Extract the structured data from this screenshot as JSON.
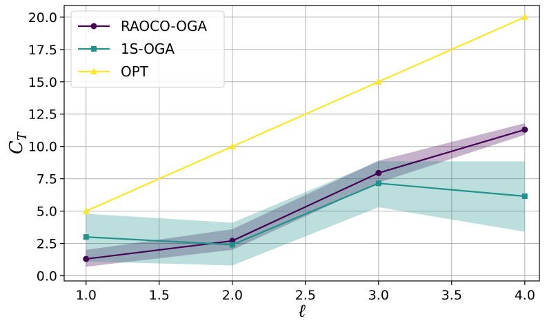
{
  "chart_data": {
    "type": "line",
    "title": "",
    "xlabel": "ℓ",
    "ylabel": "C_T",
    "ylabel_main": "C",
    "ylabel_sub": "T",
    "x": [
      1.0,
      2.0,
      3.0,
      4.0
    ],
    "xlim": [
      0.85,
      4.1
    ],
    "ylim": [
      -0.4,
      20.9
    ],
    "xticks": [
      1.0,
      1.5,
      2.0,
      2.5,
      3.0,
      3.5,
      4.0
    ],
    "xtick_labels": [
      "1.0",
      "1.5",
      "2.0",
      "2.5",
      "3.0",
      "3.5",
      "4.0"
    ],
    "yticks": [
      0.0,
      2.5,
      5.0,
      7.5,
      10.0,
      12.5,
      15.0,
      17.5,
      20.0
    ],
    "ytick_labels": [
      "0.0",
      "2.5",
      "5.0",
      "7.5",
      "10.0",
      "12.5",
      "15.0",
      "17.5",
      "20.0"
    ],
    "grid": true,
    "legend_position": "top-left",
    "series": [
      {
        "name": "RAOCO-OGA",
        "color": "#440154",
        "marker": "circle",
        "values": [
          1.3,
          2.7,
          7.95,
          11.3
        ],
        "band_lower": [
          0.7,
          2.0,
          7.2,
          10.9
        ],
        "band_upper": [
          2.0,
          3.6,
          8.9,
          11.8
        ],
        "band_opacity": 0.3
      },
      {
        "name": "1S-OGA",
        "color": "#21918c",
        "marker": "square",
        "values": [
          3.0,
          2.4,
          7.15,
          6.15
        ],
        "band_lower": [
          1.1,
          0.8,
          5.3,
          3.4
        ],
        "band_upper": [
          4.8,
          4.1,
          8.85,
          8.85
        ],
        "band_opacity": 0.3
      },
      {
        "name": "OPT",
        "color": "#fde725",
        "marker": "triangle",
        "values": [
          5.0,
          10.0,
          15.0,
          20.0
        ]
      }
    ]
  }
}
